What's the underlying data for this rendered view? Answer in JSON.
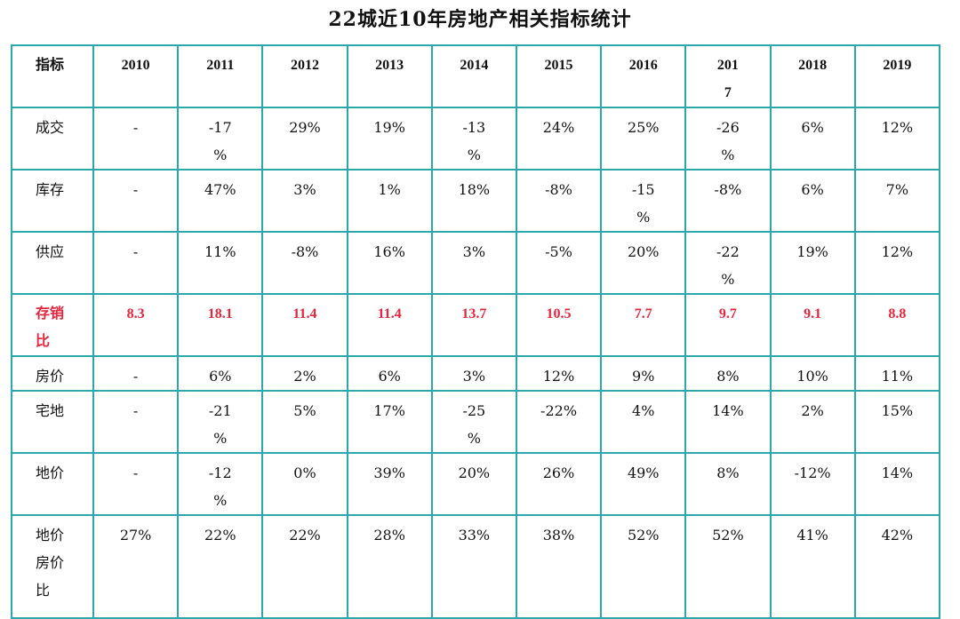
{
  "title": "22城近10年房地产相关指标统计",
  "header": {
    "label": "指标",
    "years": [
      "2010",
      "2011",
      "2012",
      "2013",
      "2014",
      "2015",
      "2016",
      "201\n7",
      "2018",
      "2019"
    ]
  },
  "rows": [
    {
      "label": "成交",
      "cells": [
        "-",
        "-17\n%",
        "29%",
        "19%",
        "-13\n%",
        "24%",
        "25%",
        "-26\n%",
        "6%",
        "12%"
      ],
      "highlight": false
    },
    {
      "label": "库存",
      "cells": [
        "-",
        "47%",
        "3%",
        "1%",
        "18%",
        "-8%",
        "-15\n%",
        "-8%",
        "6%",
        "7%"
      ],
      "highlight": false
    },
    {
      "label": "供应",
      "cells": [
        "-",
        "11%",
        "-8%",
        "16%",
        "3%",
        "-5%",
        "20%",
        "-22\n%",
        "19%",
        "12%"
      ],
      "highlight": false
    },
    {
      "label": "存销\n比",
      "cells": [
        "8.3",
        "18.1",
        "11.4",
        "11.4",
        "13.7",
        "10.5",
        "7.7",
        "9.7",
        "9.1",
        "8.8"
      ],
      "highlight": true
    },
    {
      "label": "房价",
      "cells": [
        "-",
        "6%",
        "2%",
        "6%",
        "3%",
        "12%",
        "9%",
        "8%",
        "10%",
        "11%"
      ],
      "highlight": false
    },
    {
      "label": "宅地",
      "cells": [
        "-",
        "-21\n%",
        "5%",
        "17%",
        "-25\n%",
        "-22%",
        "4%",
        "14%",
        "2%",
        "15%"
      ],
      "highlight": false
    },
    {
      "label": "地价",
      "cells": [
        "-",
        "-12\n%",
        "0%",
        "39%",
        "20%",
        "26%",
        "49%",
        "8%",
        "-12%",
        "14%"
      ],
      "highlight": false
    },
    {
      "label": "地价\n房价\n比",
      "cells": [
        "27%",
        "22%",
        "22%",
        "28%",
        "33%",
        "38%",
        "52%",
        "52%",
        "41%",
        "42%"
      ],
      "highlight": false
    }
  ],
  "colors": {
    "border": "#2aa8ad",
    "highlight_text": "#e8243c"
  }
}
